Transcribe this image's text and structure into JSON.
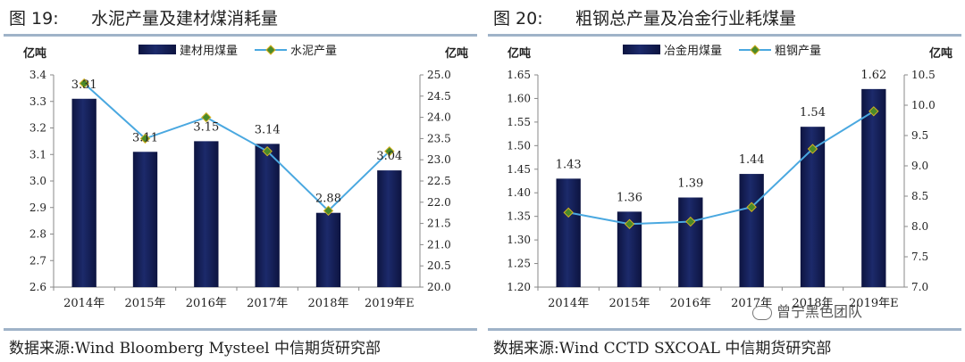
{
  "figures": [
    {
      "number": "图 19:",
      "title": "水泥产量及建材煤消耗量",
      "source": "数据来源:Wind Bloomberg Mysteel 中信期货研究部",
      "chart_data": {
        "type": "bar",
        "categories": [
          "2014年",
          "2015年",
          "2016年",
          "2017年",
          "2018年",
          "2019年E"
        ],
        "series": [
          {
            "name": "建材用煤量",
            "type": "bar",
            "axis": "left",
            "values": [
              3.31,
              3.11,
              3.15,
              3.14,
              2.88,
              3.04
            ],
            "labels": [
              "3.31",
              "3.11",
              "3.15",
              "3.14",
              "2.88",
              "3.04"
            ],
            "color": "#1c2a6b"
          },
          {
            "name": "水泥产量",
            "type": "line",
            "axis": "right",
            "values": [
              24.8,
              23.5,
              24.0,
              23.2,
              21.8,
              23.2
            ],
            "color": "#4aa8e0"
          }
        ],
        "left_axis": {
          "unit": "亿吨",
          "range": [
            2.6,
            3.4
          ],
          "ticks": [
            "2.6",
            "2.7",
            "2.8",
            "2.9",
            "3.0",
            "3.1",
            "3.2",
            "3.3",
            "3.4"
          ]
        },
        "right_axis": {
          "unit": "亿吨",
          "range": [
            20.0,
            25.0
          ],
          "ticks": [
            "20.0",
            "20.5",
            "21.0",
            "21.5",
            "22.0",
            "22.5",
            "23.0",
            "23.5",
            "24.0",
            "24.5",
            "25.0"
          ]
        },
        "legend": "top-center",
        "grid": false
      }
    },
    {
      "number": "图 20:",
      "title": "粗钢总产量及冶金行业耗煤量",
      "source": "数据来源:Wind CCTD SXCOAL 中信期货研究部",
      "chart_data": {
        "type": "bar",
        "categories": [
          "2014年",
          "2015年",
          "2016年",
          "2017年",
          "2018年",
          "2019年E"
        ],
        "series": [
          {
            "name": "冶金用煤量",
            "type": "bar",
            "axis": "left",
            "values": [
              1.43,
              1.36,
              1.39,
              1.44,
              1.54,
              1.62
            ],
            "labels": [
              "1.43",
              "1.36",
              "1.39",
              "1.44",
              "1.54",
              "1.62"
            ],
            "color": "#1c2a6b"
          },
          {
            "name": "粗钢产量",
            "type": "line",
            "axis": "right",
            "values": [
              8.23,
              8.04,
              8.08,
              8.32,
              9.28,
              9.9
            ],
            "color": "#4aa8e0"
          }
        ],
        "left_axis": {
          "unit": "亿吨",
          "range": [
            1.2,
            1.65
          ],
          "ticks": [
            "1.20",
            "1.25",
            "1.30",
            "1.35",
            "1.40",
            "1.45",
            "1.50",
            "1.55",
            "1.60",
            "1.65"
          ]
        },
        "right_axis": {
          "unit": "亿吨",
          "range": [
            7.0,
            10.5
          ],
          "ticks": [
            "7.0",
            "7.5",
            "8.0",
            "8.5",
            "9.0",
            "9.5",
            "10.0",
            "10.5"
          ]
        },
        "legend": "top-center",
        "grid": false
      }
    }
  ],
  "watermark": {
    "text": "曾宁黑色团队",
    "icon": "wechat-icon"
  }
}
